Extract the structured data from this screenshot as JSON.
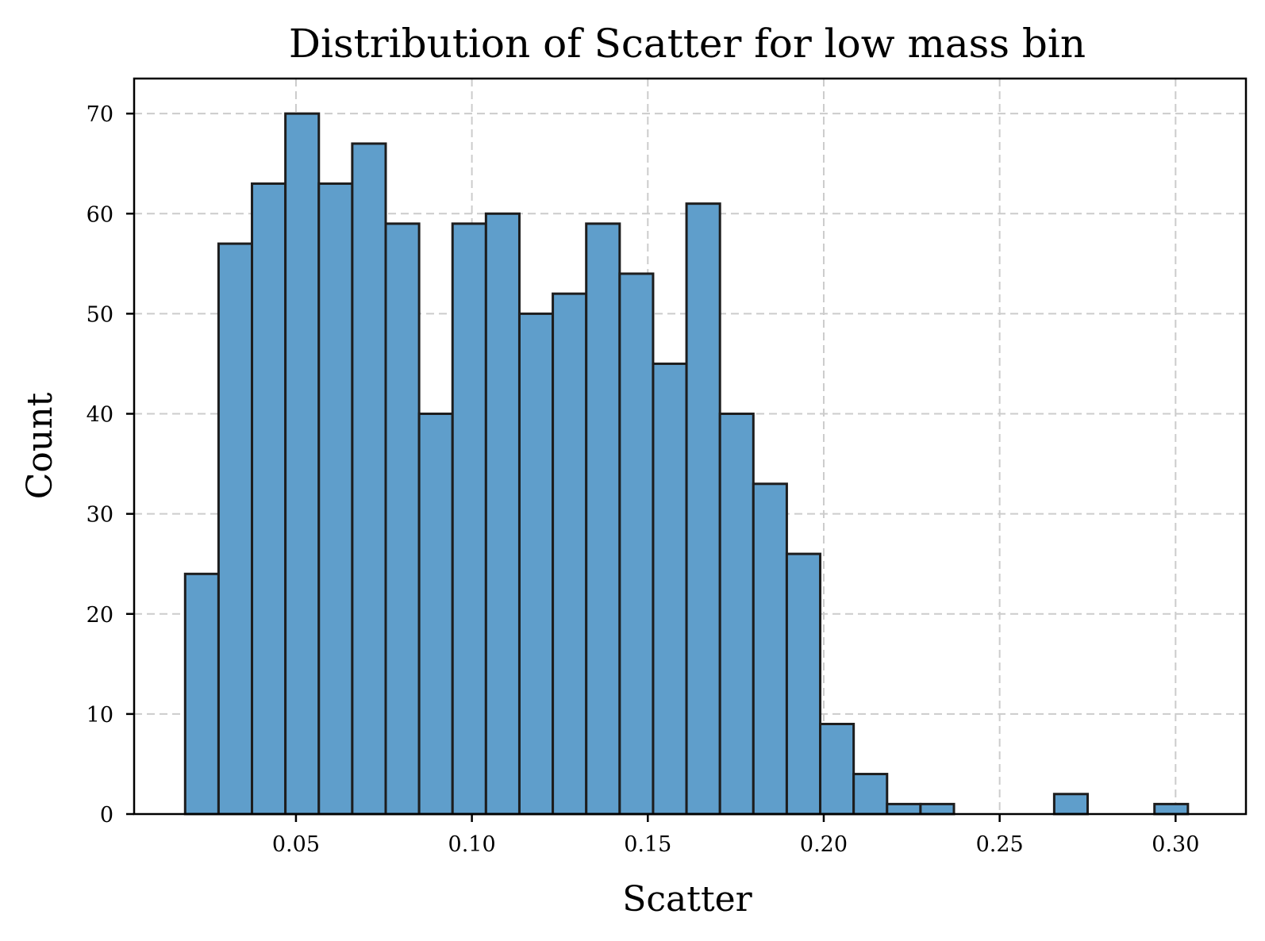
{
  "chart_data": {
    "type": "bar",
    "title": "Distribution of Scatter for low mass bin",
    "xlabel": "Scatter",
    "ylabel": "Count",
    "bin_edges": [
      0.0185,
      0.028,
      0.0375,
      0.047,
      0.0565,
      0.066,
      0.0755,
      0.085,
      0.0945,
      0.104,
      0.1135,
      0.123,
      0.1325,
      0.142,
      0.1515,
      0.161,
      0.1705,
      0.18,
      0.1895,
      0.199,
      0.2085,
      0.218,
      0.2275,
      0.237,
      0.2465,
      0.256,
      0.2655,
      0.275,
      0.2845,
      0.294,
      0.3035
    ],
    "values": [
      24,
      57,
      63,
      70,
      63,
      67,
      59,
      40,
      59,
      60,
      50,
      52,
      59,
      54,
      45,
      61,
      40,
      33,
      26,
      9,
      4,
      1,
      1,
      0,
      0,
      0,
      2,
      0,
      0,
      1
    ],
    "xlim": [
      0.004,
      0.32
    ],
    "ylim": [
      0,
      73.5
    ],
    "xticks": [
      0.05,
      0.1,
      0.15,
      0.2,
      0.25,
      0.3
    ],
    "xtick_labels": [
      "0.05",
      "0.10",
      "0.15",
      "0.20",
      "0.25",
      "0.30"
    ],
    "yticks": [
      0,
      10,
      20,
      30,
      40,
      50,
      60,
      70
    ],
    "ytick_labels": [
      "0",
      "10",
      "20",
      "30",
      "40",
      "50",
      "60",
      "70"
    ],
    "grid": true,
    "colors": {
      "bar_fill": "#5f9ecb",
      "bar_edge": "#1d1d1d",
      "grid": "#cccccc"
    }
  }
}
